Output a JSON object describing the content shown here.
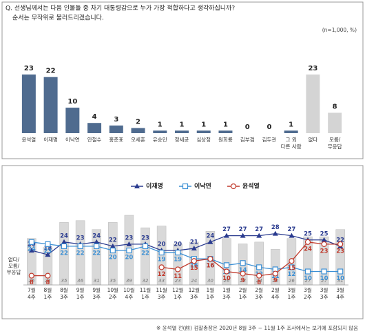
{
  "chart_data": [
    {
      "type": "bar",
      "title": "Q. 선생님께서는 다음 인물들 중 차기 대통령감으로 누가 가장 적합하다고 생각하십니까?",
      "subtitle": "순서는 무작위로 불러드리겠습니다.",
      "note": "(n=1,000, %)",
      "categories": [
        "윤석열",
        "이재명",
        "이낙연",
        "안철수",
        "홍준표",
        "오세훈",
        "유승민",
        "정세균",
        "심상정",
        "원희룡",
        "김부겸",
        "김두관",
        "그 외 다른 사람",
        "없다",
        "모름/무응답"
      ],
      "values": [
        23,
        22,
        10,
        4,
        3,
        2,
        1,
        1,
        1,
        1,
        0,
        0,
        1,
        23,
        8
      ],
      "colors": [
        "#4f6b8f",
        "#4f6b8f",
        "#4f6b8f",
        "#4f6b8f",
        "#4f6b8f",
        "#4f6b8f",
        "#4f6b8f",
        "#4f6b8f",
        "#4f6b8f",
        "#4f6b8f",
        "#4f6b8f",
        "#4f6b8f",
        "#4f6b8f",
        "#d4d4d4",
        "#d4d4d4"
      ]
    },
    {
      "type": "combo",
      "categories": [
        "7월 4주",
        "8월 1주",
        "8월 3주",
        "9월 1주",
        "9월 3주",
        "10월 2주",
        "10월 4주",
        "11월 1주",
        "11월 3주",
        "12월 1주",
        "12월 3주",
        "1월 1주",
        "1월 3주",
        "2월 1주",
        "2월 3주",
        "2월 4주",
        "3월 1주",
        "3월 2주",
        "3월 3주",
        "3월 4주"
      ],
      "bars": {
        "name": "없다/모름/무응답",
        "color": "#d9d9d9",
        "values": [
          26,
          21,
          35,
          36,
          31,
          35,
          39,
          32,
          33,
          23,
          24,
          30,
          26,
          23,
          24,
          20,
          26,
          27,
          27,
          31
        ]
      },
      "series": [
        {
          "name": "이재명",
          "color": "#2a3b8f",
          "marker": "triangle",
          "values": [
            20,
            18,
            24,
            23,
            24,
            22,
            23,
            23,
            20,
            20,
            21,
            24,
            27,
            27,
            27,
            28,
            27,
            25,
            25,
            22
          ]
        },
        {
          "name": "이낙연",
          "color": "#3b8fd4",
          "marker": "square",
          "values": [
            24,
            23,
            22,
            22,
            22,
            20,
            20,
            22,
            19,
            19,
            16,
            16,
            13,
            14,
            12,
            11,
            12,
            10,
            10,
            10
          ]
        },
        {
          "name": "윤석열",
          "color": "#c0392b",
          "marker": "circle",
          "values": [
            8,
            8,
            null,
            null,
            null,
            null,
            null,
            null,
            12,
            11,
            15,
            16,
            10,
            9,
            8,
            9,
            15,
            24,
            23,
            23
          ]
        }
      ]
    }
  ],
  "footnote": "※ 윤석열 전(前) 검찰총장은 2020년 8월 3주 ~ 11월 1주 조사에서는 보기에 포함되지 않음"
}
